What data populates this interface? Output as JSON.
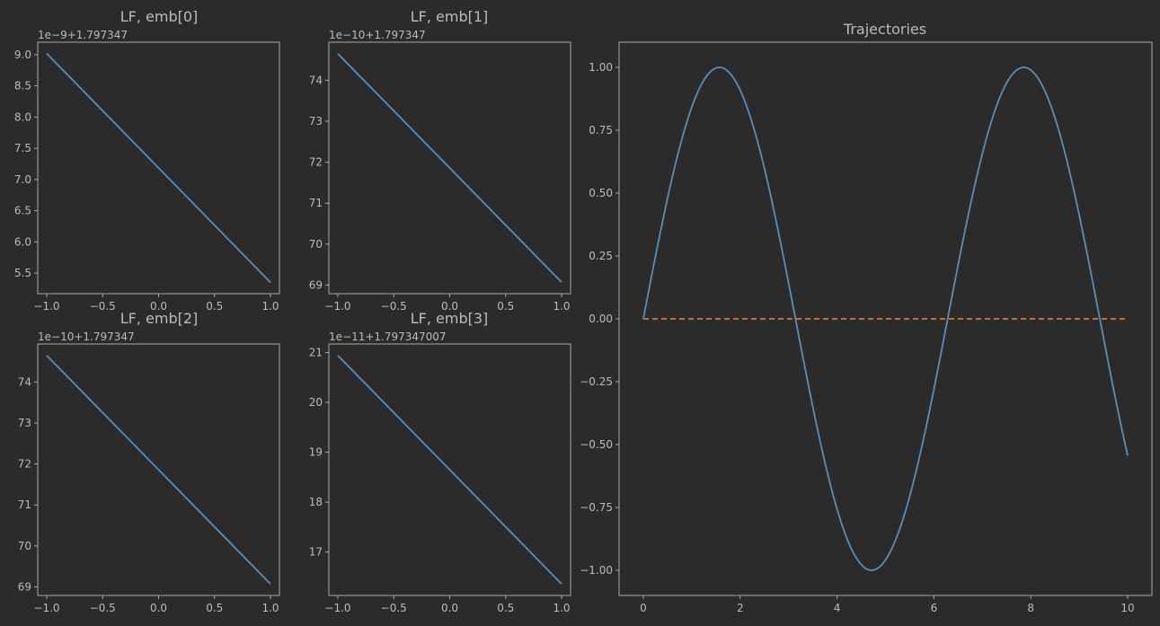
{
  "colors": {
    "background": "#2b2b2b",
    "axes": "#aaaaaa",
    "text": "#bbbbbb",
    "series_blue": "#5b8db5",
    "series_orange": "#d9773b"
  },
  "chart_data": [
    {
      "type": "line",
      "title": "LF, emb[0]",
      "offset_label": "1e−9+1.797347",
      "x": [
        -1.0,
        1.0
      ],
      "series": [
        {
          "values": [
            9.02,
            5.35
          ],
          "color": "#5b8db5",
          "dash": "solid"
        }
      ],
      "xlim": [
        -1.08,
        1.08
      ],
      "ylim": [
        5.17,
        9.2
      ],
      "xticks": [
        -1.0,
        -0.5,
        0.0,
        0.5,
        1.0
      ],
      "xtick_labels": [
        "−1.0",
        "−0.5",
        "0.0",
        "0.5",
        "1.0"
      ],
      "yticks": [
        5.5,
        6.0,
        6.5,
        7.0,
        7.5,
        8.0,
        8.5,
        9.0
      ],
      "ytick_labels": [
        "5.5",
        "6.0",
        "6.5",
        "7.0",
        "7.5",
        "8.0",
        "8.5",
        "9.0"
      ],
      "grid": false
    },
    {
      "type": "line",
      "title": "LF, emb[1]",
      "offset_label": "1e−10+1.797347",
      "x": [
        -1.0,
        1.0
      ],
      "series": [
        {
          "values": [
            74.65,
            69.07
          ],
          "color": "#5b8db5",
          "dash": "solid"
        }
      ],
      "xlim": [
        -1.08,
        1.08
      ],
      "ylim": [
        68.79,
        74.93
      ],
      "xticks": [
        -1.0,
        -0.5,
        0.0,
        0.5,
        1.0
      ],
      "xtick_labels": [
        "−1.0",
        "−0.5",
        "0.0",
        "0.5",
        "1.0"
      ],
      "yticks": [
        69,
        70,
        71,
        72,
        73,
        74
      ],
      "ytick_labels": [
        "69",
        "70",
        "71",
        "72",
        "73",
        "74"
      ],
      "grid": false
    },
    {
      "type": "line",
      "title": "LF, emb[2]",
      "offset_label": "1e−10+1.797347",
      "x": [
        -1.0,
        1.0
      ],
      "series": [
        {
          "values": [
            74.65,
            69.07
          ],
          "color": "#5b8db5",
          "dash": "solid"
        }
      ],
      "xlim": [
        -1.08,
        1.08
      ],
      "ylim": [
        68.79,
        74.93
      ],
      "xticks": [
        -1.0,
        -0.5,
        0.0,
        0.5,
        1.0
      ],
      "xtick_labels": [
        "−1.0",
        "−0.5",
        "0.0",
        "0.5",
        "1.0"
      ],
      "yticks": [
        69,
        70,
        71,
        72,
        73,
        74
      ],
      "ytick_labels": [
        "69",
        "70",
        "71",
        "72",
        "73",
        "74"
      ],
      "grid": false
    },
    {
      "type": "line",
      "title": "LF, emb[3]",
      "offset_label": "1e−11+1.797347007",
      "x": [
        -1.0,
        1.0
      ],
      "series": [
        {
          "values": [
            20.94,
            16.36
          ],
          "color": "#5b8db5",
          "dash": "solid"
        }
      ],
      "xlim": [
        -1.08,
        1.08
      ],
      "ylim": [
        16.13,
        21.17
      ],
      "xticks": [
        -1.0,
        -0.5,
        0.0,
        0.5,
        1.0
      ],
      "xtick_labels": [
        "−1.0",
        "−0.5",
        "0.0",
        "0.5",
        "1.0"
      ],
      "yticks": [
        17,
        18,
        19,
        20,
        21
      ],
      "ytick_labels": [
        "17",
        "18",
        "19",
        "20",
        "21"
      ],
      "grid": false
    },
    {
      "type": "line",
      "title": "Trajectories",
      "offset_label": "",
      "function_series": [
        {
          "expression": "sin(x)",
          "x_start": 0,
          "x_end": 10,
          "samples": 200,
          "color": "#5b8db5",
          "dash": "solid"
        },
        {
          "expression": "0",
          "x_start": 0,
          "x_end": 10,
          "samples": 2,
          "color": "#d9773b",
          "dash": "dashed"
        }
      ],
      "xlim": [
        -0.5,
        10.5
      ],
      "ylim": [
        -1.1,
        1.1
      ],
      "xticks": [
        0,
        2,
        4,
        6,
        8,
        10
      ],
      "xtick_labels": [
        "0",
        "2",
        "4",
        "6",
        "8",
        "10"
      ],
      "yticks": [
        -1.0,
        -0.75,
        -0.5,
        -0.25,
        0.0,
        0.25,
        0.5,
        0.75,
        1.0
      ],
      "ytick_labels": [
        "−1.00",
        "−0.75",
        "−0.50",
        "−0.25",
        "0.00",
        "0.25",
        "0.50",
        "0.75",
        "1.00"
      ],
      "grid": false
    }
  ]
}
